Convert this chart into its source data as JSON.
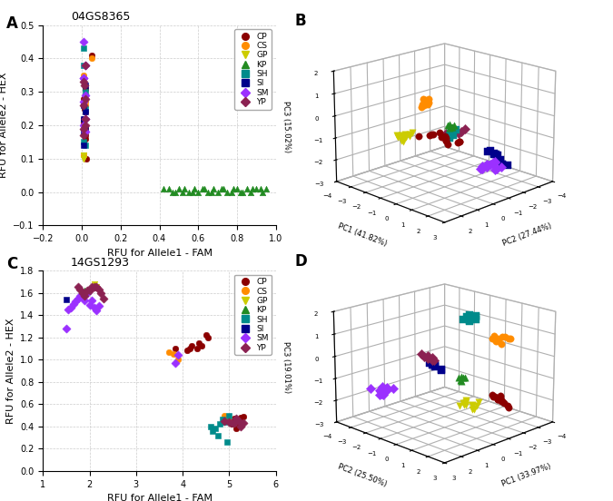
{
  "panel_A": {
    "title": "04GS8365",
    "xlabel": "RFU for Allele1 - FAM",
    "ylabel": "RFU for Allele2 - HEX",
    "xlim": [
      -0.2,
      1.0
    ],
    "ylim": [
      -0.1,
      0.5
    ],
    "xticks": [
      -0.2,
      0.0,
      0.2,
      0.4,
      0.6,
      0.8,
      1.0
    ],
    "yticks": [
      -0.1,
      0.0,
      0.1,
      0.2,
      0.3,
      0.4,
      0.5
    ],
    "groups": {
      "CP": {
        "color": "#8B0000",
        "marker": "o",
        "x": [
          0.01,
          0.02,
          0.01,
          0.02,
          0.02,
          0.01,
          0.02,
          0.01,
          0.015,
          0.02,
          0.01,
          0.02,
          0.025,
          0.05
        ],
        "y": [
          0.22,
          0.19,
          0.2,
          0.24,
          0.18,
          0.21,
          0.17,
          0.28,
          0.25,
          0.16,
          0.2,
          0.31,
          0.1,
          0.41
        ]
      },
      "CS": {
        "color": "#FF8C00",
        "marker": "o",
        "x": [
          0.01,
          0.02,
          0.01,
          0.02,
          0.01,
          0.02,
          0.02,
          0.05
        ],
        "y": [
          0.35,
          0.29,
          0.26,
          0.27,
          0.11,
          0.26,
          0.19,
          0.4
        ]
      },
      "GP": {
        "color": "#CCCC00",
        "marker": "v",
        "x": [
          0.01,
          0.01,
          0.01,
          0.01
        ],
        "y": [
          0.11,
          0.1,
          0.11,
          0.1
        ]
      },
      "KP": {
        "color": "#228B22",
        "marker": "^",
        "x": [
          0.45,
          0.48,
          0.5,
          0.52,
          0.55,
          0.58,
          0.6,
          0.62,
          0.65,
          0.68,
          0.7,
          0.72,
          0.75,
          0.78,
          0.8,
          0.82,
          0.85,
          0.87,
          0.9,
          0.93,
          0.95,
          0.42,
          0.47,
          0.53,
          0.57,
          0.63,
          0.67,
          0.73,
          0.77,
          0.83,
          0.88,
          0.92
        ],
        "y": [
          0.01,
          0.0,
          0.01,
          0.0,
          0.0,
          0.01,
          0.0,
          0.01,
          0.0,
          0.01,
          0.0,
          0.01,
          0.0,
          0.01,
          0.01,
          0.0,
          0.01,
          0.0,
          0.01,
          0.0,
          0.01,
          0.01,
          0.0,
          0.01,
          0.0,
          0.01,
          0.0,
          0.01,
          0.0,
          0.0,
          0.01,
          0.01
        ]
      },
      "SH": {
        "color": "#008B8B",
        "marker": "s",
        "x": [
          0.01,
          0.02,
          0.01,
          0.02,
          0.01,
          0.02
        ],
        "y": [
          0.43,
          0.3,
          0.38,
          0.25,
          0.15,
          0.14
        ]
      },
      "SI": {
        "color": "#00008B",
        "marker": "s",
        "x": [
          0.01,
          0.02,
          0.01,
          0.02,
          0.01,
          0.02,
          0.01
        ],
        "y": [
          0.26,
          0.24,
          0.22,
          0.19,
          0.18,
          0.32,
          0.14
        ]
      },
      "SM": {
        "color": "#9B30FF",
        "marker": "D",
        "x": [
          0.01,
          0.02,
          0.01,
          0.02,
          0.01,
          0.02,
          0.01,
          0.02,
          0.01
        ],
        "y": [
          0.45,
          0.38,
          0.34,
          0.29,
          0.27,
          0.22,
          0.2,
          0.18,
          0.34
        ]
      },
      "YP": {
        "color": "#8B2252",
        "marker": "D",
        "x": [
          0.01,
          0.02,
          0.01,
          0.02,
          0.01,
          0.02,
          0.01,
          0.015,
          0.02
        ],
        "y": [
          0.33,
          0.28,
          0.26,
          0.22,
          0.19,
          0.2,
          0.17,
          0.32,
          0.38
        ]
      }
    }
  },
  "panel_B": {
    "xlabel": "PC2 (27.44%)",
    "pc1_label": "PC1 (41.82%)",
    "zlabel": "PC3 (15.02%)",
    "pc2_lim": [
      -3,
      3
    ],
    "pc1_lim": [
      -4,
      3
    ],
    "pc3_lim": [
      -3,
      2
    ],
    "groups": {
      "CP": {
        "color": "#8B0000",
        "marker": "o",
        "pc2": [
          1.5,
          1.7,
          1.9,
          2.0,
          2.1,
          1.6,
          1.8,
          2.0,
          1.5,
          1.7,
          1.9,
          2.1,
          1.6,
          1.8
        ],
        "pc1": [
          1.5,
          1.8,
          2.0,
          2.2,
          1.2,
          2.5,
          1.0,
          2.8,
          0.8,
          1.5,
          2.0,
          0.5,
          2.5,
          1.5
        ],
        "pc3": [
          0.0,
          -0.1,
          0.0,
          -0.1,
          0.1,
          0.0,
          0.0,
          0.1,
          -0.1,
          0.0,
          0.1,
          -0.1,
          0.0,
          0.2
        ]
      },
      "CS": {
        "color": "#FF8C00",
        "marker": "o",
        "pc2": [
          0.7,
          0.8,
          0.9,
          1.0,
          1.1,
          0.75,
          0.85,
          0.95,
          1.05,
          1.15
        ],
        "pc1": [
          -0.3,
          -0.2,
          -0.4,
          -0.2,
          -0.3,
          -0.3,
          -0.4,
          -0.2,
          -0.3,
          -0.3
        ],
        "pc3": [
          0.9,
          1.1,
          0.8,
          1.0,
          0.9,
          0.8,
          1.0,
          0.9,
          1.1,
          0.8
        ]
      },
      "GP": {
        "color": "#CCCC00",
        "marker": "v",
        "pc2": [
          1.5,
          1.7,
          1.9,
          2.0,
          1.6,
          1.8,
          2.0,
          2.1,
          1.5,
          1.7,
          1.9,
          2.0
        ],
        "pc1": [
          -0.7,
          -0.8,
          -0.7,
          -0.9,
          -0.6,
          -0.8,
          -0.7,
          -0.9,
          -0.5,
          -0.7,
          -0.8,
          -0.6
        ],
        "pc3": [
          -0.5,
          -0.4,
          -0.6,
          -0.5,
          -0.4,
          -0.5,
          -0.6,
          -0.4,
          -0.3,
          -0.5,
          -0.4,
          -0.6
        ]
      },
      "KP": {
        "color": "#228B22",
        "marker": "^",
        "pc2": [
          -0.1,
          0.0,
          0.1,
          -0.1,
          0.0,
          0.1
        ],
        "pc1": [
          0.4,
          0.3,
          0.4,
          0.5,
          0.4,
          0.3
        ],
        "pc3": [
          -0.2,
          -0.1,
          -0.2,
          -0.1,
          -0.2,
          -0.1
        ]
      },
      "SH": {
        "color": "#008B8B",
        "marker": "s",
        "pc2": [
          -1.2,
          -1.1,
          -1.0,
          -0.9,
          -1.15,
          -1.05,
          -0.95,
          -1.1
        ],
        "pc1": [
          -0.5,
          -0.6,
          -0.5,
          -0.6,
          -0.7,
          -0.5,
          -0.6,
          -0.8
        ],
        "pc3": [
          -0.8,
          -1.0,
          -0.9,
          -1.1,
          -0.8,
          -1.0,
          -0.9,
          -1.1
        ]
      },
      "SI": {
        "color": "#00008B",
        "marker": "s",
        "pc2": [
          -2.5,
          -2.3,
          -2.1,
          -2.0,
          -2.4,
          -2.2,
          -1.9,
          -2.5,
          -2.3,
          -2.1
        ],
        "pc1": [
          0.5,
          1.0,
          1.5,
          2.0,
          0.8,
          1.2,
          1.8,
          0.3,
          0.9,
          1.6
        ],
        "pc3": [
          -1.8,
          -1.8,
          -1.9,
          -2.0,
          -1.9,
          -1.8,
          -2.0,
          -1.9,
          -1.8,
          -2.1
        ]
      },
      "SM": {
        "color": "#9B30FF",
        "marker": "D",
        "pc2": [
          -0.5,
          -0.3,
          -0.1,
          0.1,
          0.3,
          -0.4,
          -0.2,
          0.0,
          0.2,
          0.4,
          -0.5,
          -0.3,
          -0.1,
          0.1
        ],
        "pc1": [
          2.5,
          2.7,
          3.0,
          2.8,
          2.5,
          2.7,
          3.0,
          2.8,
          2.5,
          2.7,
          3.0,
          2.8,
          2.5,
          2.7
        ],
        "pc3": [
          -1.5,
          -1.3,
          -1.5,
          -1.3,
          -1.5,
          -1.3,
          -1.5,
          -1.3,
          -1.5,
          -1.3,
          -1.5,
          -1.3,
          -1.5,
          -1.3
        ]
      },
      "YP": {
        "color": "#8B2252",
        "marker": "D",
        "pc2": [
          -1.6,
          -1.4,
          -1.2,
          -1.0,
          -1.5,
          -1.3,
          -1.1
        ],
        "pc1": [
          -0.3,
          -0.5,
          -0.7,
          -0.9,
          -0.4,
          -0.6,
          -0.8
        ],
        "pc3": [
          -0.8,
          -1.0,
          -0.8,
          -1.0,
          -0.9,
          -0.9,
          -1.1
        ]
      }
    }
  },
  "panel_C": {
    "title": "14GS1293",
    "xlabel": "RFU for Allele1 - FAM",
    "ylabel": "RFU for Allele2 - HEX",
    "xlim": [
      1.0,
      6.0
    ],
    "ylim": [
      0.0,
      1.8
    ],
    "xticks": [
      1,
      2,
      3,
      4,
      5,
      6
    ],
    "yticks": [
      0.0,
      0.2,
      0.4,
      0.6,
      0.8,
      1.0,
      1.2,
      1.4,
      1.6,
      1.8
    ],
    "groups": {
      "CP": {
        "color": "#8B0000",
        "marker": "o",
        "x": [
          4.2,
          4.3,
          4.4,
          4.5,
          5.0,
          5.1,
          5.2,
          5.3,
          4.15,
          4.35,
          4.55,
          5.05,
          5.15,
          5.25,
          3.85,
          4.1
        ],
        "y": [
          1.12,
          1.1,
          1.12,
          1.22,
          0.45,
          0.47,
          0.43,
          0.49,
          1.1,
          1.15,
          1.2,
          0.42,
          0.38,
          0.48,
          1.1,
          1.08
        ]
      },
      "CS": {
        "color": "#FF8C00",
        "marker": "o",
        "x": [
          3.7,
          3.8,
          3.9,
          4.9,
          5.0
        ],
        "y": [
          1.07,
          1.05,
          1.0,
          0.5,
          0.47
        ]
      },
      "GP": {
        "color": "#CCCC00",
        "marker": "v",
        "x": [
          2.1,
          2.15
        ],
        "y": [
          1.68,
          1.65
        ]
      },
      "KP": {
        "color": "#228B22",
        "marker": "^",
        "x": [
          1.9
        ],
        "y": [
          1.62
        ]
      },
      "SH": {
        "color": "#008B8B",
        "marker": "s",
        "x": [
          4.6,
          4.7,
          4.8,
          4.9,
          5.0,
          4.65,
          4.75,
          4.85,
          4.95
        ],
        "y": [
          0.4,
          0.38,
          0.42,
          0.44,
          0.5,
          0.36,
          0.32,
          0.46,
          0.26
        ]
      },
      "SI": {
        "color": "#00008B",
        "marker": "s",
        "x": [
          1.5
        ],
        "y": [
          1.54
        ]
      },
      "SM": {
        "color": "#9B30FF",
        "marker": "D",
        "x": [
          1.5,
          1.6,
          1.7,
          1.8,
          1.9,
          2.0,
          2.1,
          2.2,
          1.55,
          1.65,
          1.75,
          1.85,
          1.95,
          2.05,
          2.15,
          3.85,
          3.9
        ],
        "y": [
          1.28,
          1.47,
          1.52,
          1.57,
          1.53,
          1.49,
          1.47,
          1.48,
          1.45,
          1.5,
          1.55,
          1.58,
          1.6,
          1.53,
          1.44,
          0.97,
          1.04
        ]
      },
      "YP": {
        "color": "#8B2252",
        "marker": "D",
        "x": [
          1.75,
          1.85,
          1.95,
          2.05,
          2.15,
          2.2,
          2.25,
          2.3,
          1.8,
          1.9,
          2.0,
          2.1,
          5.0,
          5.1,
          5.2,
          5.05,
          5.15,
          5.25,
          4.9,
          5.3
        ],
        "y": [
          1.65,
          1.6,
          1.62,
          1.65,
          1.65,
          1.63,
          1.6,
          1.55,
          1.63,
          1.57,
          1.62,
          1.65,
          0.44,
          0.43,
          0.45,
          0.43,
          0.47,
          0.4,
          0.45,
          0.43
        ]
      }
    }
  },
  "panel_D": {
    "xlabel": "PC2 (25.50%)",
    "pc1_label": "PC1 (33.97%)",
    "zlabel": "PC3 (19.01%)",
    "pc2_lim": [
      -4,
      3
    ],
    "pc1_lim": [
      -4,
      3
    ],
    "pc3_lim": [
      -3,
      2
    ],
    "groups": {
      "CP": {
        "color": "#8B0000",
        "marker": "o",
        "pc2": [
          1.5,
          1.7,
          1.9,
          2.0,
          1.6,
          1.8,
          2.0,
          2.1,
          1.5,
          1.7,
          1.85,
          2.05
        ],
        "pc1": [
          -1.5,
          -1.7,
          -1.9,
          -2.1,
          -1.6,
          -1.8,
          -2.0,
          -1.4,
          -1.6,
          -1.7,
          -1.8,
          -1.5
        ],
        "pc3": [
          -1.5,
          -1.7,
          -1.9,
          -2.1,
          -1.6,
          -1.8,
          -2.0,
          -1.4,
          -1.6,
          -1.7,
          -1.8,
          -1.5
        ]
      },
      "CS": {
        "color": "#FF8C00",
        "marker": "o",
        "pc2": [
          1.5,
          1.7,
          1.9,
          2.0,
          1.6,
          1.8,
          2.0,
          2.1,
          1.5,
          1.65
        ],
        "pc1": [
          -1.5,
          -1.7,
          -1.9,
          -2.1,
          -1.6,
          -1.8,
          -2.0,
          -1.4,
          -1.6,
          -1.7
        ],
        "pc3": [
          1.0,
          0.9,
          1.1,
          1.0,
          0.9,
          1.1,
          1.0,
          0.9,
          1.1,
          1.0
        ]
      },
      "GP": {
        "color": "#CCCC00",
        "marker": "v",
        "pc2": [
          -0.5,
          -0.3,
          -0.1,
          0.1,
          0.3,
          -0.4,
          -0.2,
          0.0,
          0.2,
          0.4,
          -0.5,
          -0.3
        ],
        "pc1": [
          -1.5,
          -1.7,
          -1.9,
          -2.1,
          -1.6,
          -1.8,
          -2.0,
          -1.4,
          -1.6,
          -1.7,
          -1.8,
          -1.5
        ],
        "pc3": [
          -2.5,
          -2.3,
          -2.5,
          -2.3,
          -2.5,
          -2.3,
          -2.5,
          -2.3,
          -2.5,
          -2.3,
          -2.5,
          -2.3
        ]
      },
      "KP": {
        "color": "#228B22",
        "marker": "^",
        "pc2": [
          -0.1,
          0.0,
          0.1,
          -0.1,
          0.0,
          0.1
        ],
        "pc1": [
          -1.0,
          -1.2,
          -1.0,
          -1.2,
          -1.0,
          -1.2
        ],
        "pc3": [
          -1.0,
          -1.0,
          -1.1,
          -1.0,
          -1.1,
          -1.0
        ]
      },
      "SH": {
        "color": "#008B8B",
        "marker": "s",
        "pc2": [
          -0.3,
          -0.1,
          0.1,
          0.3,
          -0.2,
          0.0,
          0.2,
          0.4
        ],
        "pc1": [
          -1.5,
          -1.7,
          -1.5,
          -1.7,
          -1.6,
          -1.6,
          -1.8,
          -1.6
        ],
        "pc3": [
          1.5,
          1.7,
          1.5,
          1.7,
          1.6,
          1.5,
          1.7,
          1.6
        ]
      },
      "SI": {
        "color": "#00008B",
        "marker": "s",
        "pc2": [
          -1.5,
          -1.3,
          -1.1,
          -0.9,
          -1.4,
          -1.2,
          -1.0
        ],
        "pc1": [
          -0.5,
          -0.7,
          -0.5,
          -0.7,
          -0.6,
          -0.6,
          -0.8
        ],
        "pc3": [
          -0.5,
          -0.7,
          -0.5,
          -0.7,
          -0.6,
          -0.6,
          -0.8
        ]
      },
      "SM": {
        "color": "#9B30FF",
        "marker": "D",
        "pc2": [
          -2.5,
          -2.3,
          -2.1,
          -2.0,
          -2.4,
          -2.2,
          -1.9,
          -2.5,
          -2.3,
          -2.1,
          -2.4,
          -2.2,
          -2.0,
          -1.8
        ],
        "pc1": [
          1.5,
          1.7,
          1.9,
          2.1,
          1.6,
          1.8,
          2.0,
          2.2,
          1.4,
          1.6,
          1.7,
          1.8,
          2.1,
          1.5
        ],
        "pc3": [
          -1.5,
          -1.3,
          -1.5,
          -1.3,
          -1.5,
          -1.3,
          -1.5,
          -1.3,
          -1.5,
          -1.3,
          -1.5,
          -1.3,
          -1.5,
          -1.3
        ]
      },
      "YP": {
        "color": "#8B2252",
        "marker": "D",
        "pc2": [
          -1.5,
          -1.3,
          -1.1,
          -0.9,
          -1.4,
          -1.2,
          -1.0,
          -0.8
        ],
        "pc1": [
          0.0,
          -0.2,
          0.0,
          -0.2,
          -0.1,
          -0.1,
          -0.2,
          0.0
        ],
        "pc3": [
          0.0,
          -0.2,
          0.0,
          -0.2,
          -0.1,
          -0.1,
          -0.2,
          0.0
        ]
      }
    }
  },
  "legend_groups": [
    "CP",
    "CS",
    "GP",
    "KP",
    "SH",
    "SI",
    "SM",
    "YP"
  ],
  "legend_colors": [
    "#8B0000",
    "#FF8C00",
    "#CCCC00",
    "#228B22",
    "#008B8B",
    "#00008B",
    "#9B30FF",
    "#8B2252"
  ],
  "legend_markers": [
    "o",
    "o",
    "v",
    "^",
    "s",
    "s",
    "D",
    "D"
  ],
  "bg_color": "#ffffff",
  "grid_color": "#cccccc"
}
